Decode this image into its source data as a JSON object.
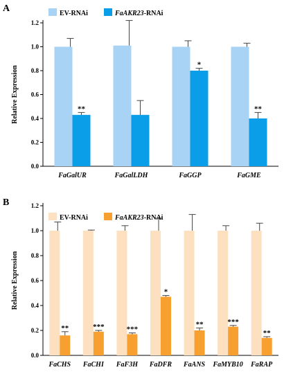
{
  "chart_data": [
    {
      "type": "bar",
      "panel_label": "A",
      "categories": [
        "FaGalUR",
        "FaGalLDH",
        "FaGGP",
        "FaGME"
      ],
      "ylabel": "Relative Expression",
      "xlabel": "",
      "ylim": [
        0,
        1.2
      ],
      "yticks": [
        "0.0",
        "0.2",
        "0.4",
        "0.6",
        "0.8",
        "1.0",
        "1.2"
      ],
      "legend_position": "top-left",
      "series": [
        {
          "name": "EV-RNAi",
          "color": "#a9d3f5",
          "values": [
            1.0,
            1.01,
            1.0,
            1.0
          ],
          "errors": [
            0.07,
            0.21,
            0.05,
            0.03
          ],
          "significance": [
            "",
            "",
            "",
            ""
          ]
        },
        {
          "name_italic": "FaAKR23",
          "name_suffix": "-RNAi",
          "color": "#0a9de8",
          "values": [
            0.43,
            0.43,
            0.8,
            0.4
          ],
          "errors": [
            0.02,
            0.12,
            0.02,
            0.05
          ],
          "significance": [
            "**",
            "",
            "*",
            "**"
          ]
        }
      ]
    },
    {
      "type": "bar",
      "panel_label": "B",
      "categories": [
        "FaCHS",
        "FaCHI",
        "FaF3H",
        "FaDFR",
        "FaANS",
        "FaMYB10",
        "FaRAP"
      ],
      "ylabel": "Relative Expression",
      "xlabel": "",
      "ylim": [
        0,
        1.2
      ],
      "yticks": [
        "0.0",
        "0.2",
        "0.4",
        "0.6",
        "0.8",
        "1.0",
        "1.2"
      ],
      "legend_position": "top-left",
      "series": [
        {
          "name": "EV-RNAi",
          "color": "#fde0c0",
          "values": [
            1.0,
            1.0,
            1.0,
            1.0,
            1.0,
            1.0,
            1.0
          ],
          "errors": [
            0.07,
            0.005,
            0.04,
            0.1,
            0.13,
            0.04,
            0.06
          ],
          "significance": [
            "",
            "",
            "",
            "",
            "",
            "",
            ""
          ]
        },
        {
          "name_italic": "FaAKR23",
          "name_suffix": "-RNAi",
          "color": "#f7a030",
          "values": [
            0.16,
            0.19,
            0.17,
            0.47,
            0.2,
            0.23,
            0.14
          ],
          "errors": [
            0.03,
            0.01,
            0.01,
            0.01,
            0.02,
            0.01,
            0.01
          ],
          "significance": [
            "**",
            "***",
            "***",
            "*",
            "**",
            "***",
            "**"
          ]
        }
      ]
    }
  ]
}
